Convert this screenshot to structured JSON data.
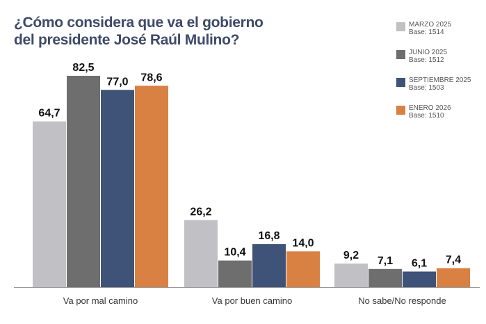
{
  "chart_data": {
    "type": "bar",
    "title": "¿Cómo considera que va el gobierno del presidente José Raúl Mulino?",
    "title_lines": [
      "¿Cómo considera que va el gobierno",
      "del presidente José Raúl Mulino?"
    ],
    "categories": [
      "Va por mal camino",
      "Va por buen camino",
      "No sabe/No responde"
    ],
    "series": [
      {
        "name": "MARZO 2025",
        "base": "Base: 1514",
        "color": "#c1c0c5",
        "values": [
          64.7,
          26.2,
          9.2
        ],
        "labels": [
          "64,7",
          "26,2",
          "9,2"
        ]
      },
      {
        "name": "JUNIO 2025",
        "base": "Base: 1512",
        "color": "#6e6e6e",
        "values": [
          82.5,
          10.4,
          7.1
        ],
        "labels": [
          "82,5",
          "10,4",
          "7,1"
        ]
      },
      {
        "name": "SEPTIEMBRE 2025",
        "base": "Base: 1503",
        "color": "#3f5278",
        "values": [
          77.0,
          16.8,
          6.1
        ],
        "labels": [
          "77,0",
          "16,8",
          "6,1"
        ]
      },
      {
        "name": "ENERO 2026",
        "base": "Base: 1510",
        "color": "#d98043",
        "values": [
          78.6,
          14.0,
          7.4
        ],
        "labels": [
          "78,6",
          "14,0",
          "7,4"
        ]
      }
    ],
    "ylim": [
      0,
      85
    ],
    "grid": false,
    "legend_position": "top-right"
  }
}
